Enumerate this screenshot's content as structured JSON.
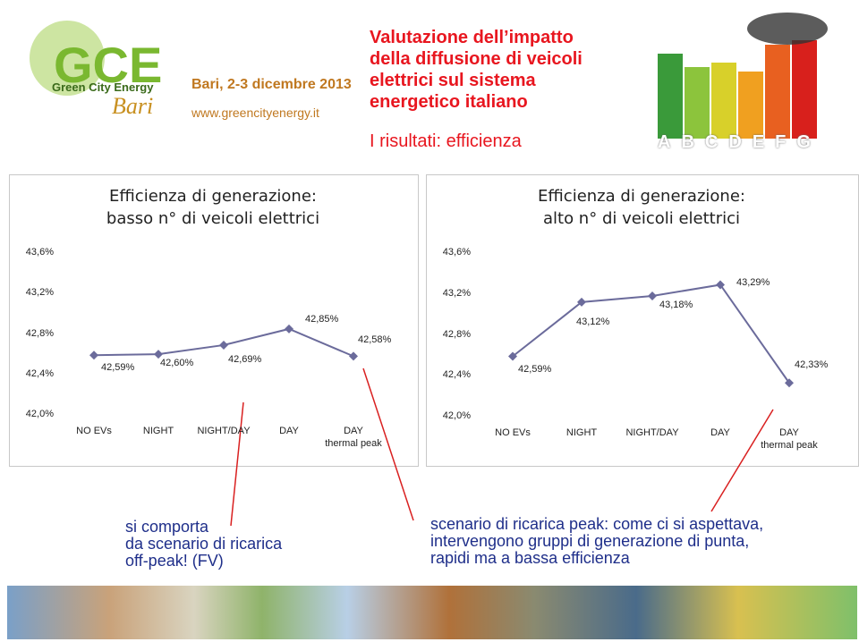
{
  "header": {
    "logo_text": "GCE",
    "logo_subtitle": "Green City Energy",
    "logo_city": "Bari",
    "date": "Bari, 2-3 dicembre 2013",
    "website": "www.greencityenergy.it",
    "title": [
      "Valutazione dell’impatto",
      "della diffusione di veicoli",
      "elettrici sul sistema",
      "energetico italiano"
    ],
    "subtitle": "I risultati: efficienza",
    "energy_labels": [
      "A",
      "B",
      "C",
      "D",
      "E",
      "F",
      "G"
    ]
  },
  "chart_data": [
    {
      "type": "line",
      "title": [
        "Efficienza di generazione:",
        "basso n° di veicoli elettrici"
      ],
      "categories": [
        "NO EVs",
        "NIGHT",
        "NIGHT/DAY",
        "DAY",
        "DAY\nthermal peak"
      ],
      "values": [
        42.59,
        42.6,
        42.69,
        42.85,
        42.58
      ],
      "value_labels": [
        "42,59%",
        "42,60%",
        "42,69%",
        "42,85%",
        "42,58%"
      ],
      "color": "#6b6b9b",
      "ylim": [
        42.0,
        43.6
      ],
      "yticks": [
        {
          "value": 42.0,
          "label": "42,0%"
        },
        {
          "value": 42.4,
          "label": "42,4%"
        },
        {
          "value": 42.8,
          "label": "42,8%"
        },
        {
          "value": 43.2,
          "label": "43,2%"
        },
        {
          "value": 43.6,
          "label": "43,6%"
        }
      ]
    },
    {
      "type": "line",
      "title": [
        "Efficienza di generazione:",
        "alto n° di veicoli elettrici"
      ],
      "categories": [
        "NO EVs",
        "NIGHT",
        "NIGHT/DAY",
        "DAY",
        "DAY\nthermal peak"
      ],
      "values": [
        42.59,
        43.12,
        43.18,
        43.29,
        42.33
      ],
      "value_labels": [
        "42,59%",
        "43,12%",
        "43,18%",
        "43,29%",
        "42,33%"
      ],
      "color": "#6b6b9b",
      "ylim": [
        42.0,
        43.6
      ],
      "yticks": [
        {
          "value": 42.0,
          "label": "42,0%"
        },
        {
          "value": 42.4,
          "label": "42,4%"
        },
        {
          "value": 42.8,
          "label": "42,8%"
        },
        {
          "value": 43.2,
          "label": "43,2%"
        },
        {
          "value": 43.6,
          "label": "43,6%"
        }
      ]
    }
  ],
  "annotations": [
    [
      "si comporta",
      "da scenario di ricarica",
      "off-peak! (FV)"
    ],
    [
      "scenario di ricarica peak: come ci si aspettava,",
      "intervengono gruppi di generazione di punta,",
      "rapidi ma a bassa efficienza"
    ]
  ]
}
